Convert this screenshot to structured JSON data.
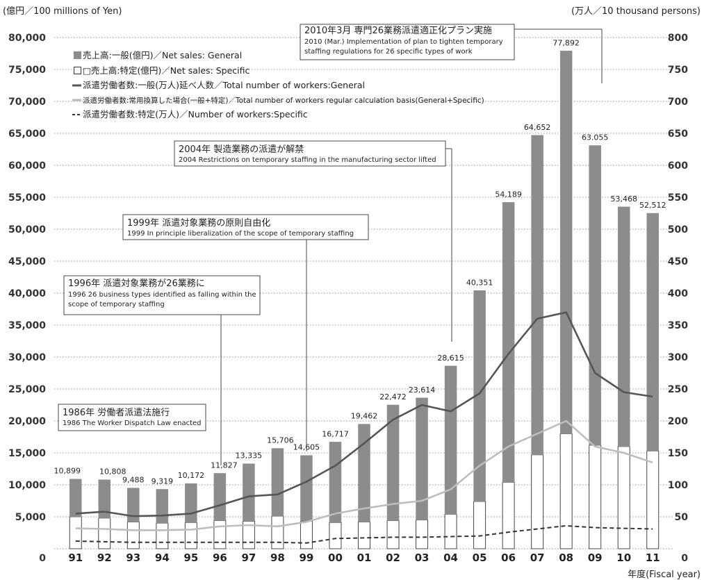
{
  "chart_data": {
    "type": "bar",
    "title": "",
    "y_left_label": "(億円／100 millions of Yen)",
    "y_right_label": "(万人／10 thousand persons)",
    "xlabel": "年度(Fiscal year)",
    "categories": [
      "91",
      "92",
      "93",
      "94",
      "95",
      "96",
      "97",
      "98",
      "99",
      "00",
      "01",
      "02",
      "03",
      "04",
      "05",
      "06",
      "07",
      "08",
      "09",
      "10",
      "11"
    ],
    "ylim_left": [
      0,
      80000
    ],
    "ylim_right": [
      0,
      800
    ],
    "y_left_ticks": [
      "0",
      "5,000",
      "10,000",
      "15,000",
      "20,000",
      "25,000",
      "30,000",
      "35,000",
      "40,000",
      "45,000",
      "50,000",
      "55,000",
      "60,000",
      "65,000",
      "70,000",
      "75,000",
      "80,000"
    ],
    "y_right_ticks": [
      "0",
      "50",
      "100",
      "150",
      "200",
      "250",
      "300",
      "350",
      "400",
      "450",
      "500",
      "550",
      "600",
      "650",
      "700",
      "750",
      "800"
    ],
    "grid": true,
    "bar_total_labels": [
      "10,899",
      "10,808",
      "9,488",
      "9,319",
      "10,172",
      "11,827",
      "13,335",
      "15,706",
      "14,605",
      "16,717",
      "19,462",
      "22,472",
      "23,614",
      "28,615",
      "40,351",
      "54,189",
      "64,652",
      "77,892",
      "63.055",
      "53,468",
      "52,512"
    ],
    "series": [
      {
        "name": "売上高:一般(億円)／Net sales: General",
        "kind": "bar",
        "axis": "left",
        "color": "#8c8c8c",
        "values": [
          5900,
          6000,
          5300,
          5300,
          6100,
          7400,
          9000,
          10600,
          10300,
          12600,
          15300,
          18100,
          19100,
          23200,
          33000,
          43800,
          50000,
          59900,
          46900,
          37500,
          37200
        ]
      },
      {
        "name": "□売上高:特定(億円)／Net sales: Specific",
        "kind": "bar",
        "axis": "left",
        "color": "#ffffff",
        "values": [
          5000,
          4800,
          4200,
          4000,
          4100,
          4400,
          4300,
          5100,
          4300,
          4100,
          4200,
          4400,
          4500,
          5400,
          7400,
          10400,
          14700,
          18000,
          16200,
          16000,
          15300
        ]
      },
      {
        "name": "派遣労働者数:一般(万人)延べ人数／Total number of workers:General",
        "kind": "line",
        "axis": "right",
        "color": "#555555",
        "style": "solid",
        "values": [
          55,
          58,
          51,
          52,
          55,
          68,
          82,
          85,
          105,
          130,
          165,
          202,
          225,
          215,
          243,
          305,
          360,
          370,
          275,
          245,
          238
        ]
      },
      {
        "name": "派遣労働者数:常用換算した場合(一般+特定)／Total number of workers regular calculation basis(General+Specific)",
        "kind": "line",
        "axis": "right",
        "color": "#bdbdbd",
        "style": "solid",
        "values": [
          32,
          31,
          29,
          29,
          30,
          35,
          37,
          35,
          42,
          55,
          63,
          70,
          75,
          93,
          130,
          160,
          180,
          200,
          160,
          150,
          135
        ]
      },
      {
        "name": "派遣労働者数:特定(万人)／Number of workers:Specific",
        "kind": "line",
        "axis": "right",
        "color": "#333333",
        "style": "dashed",
        "values": [
          12,
          11,
          10,
          10,
          10,
          10,
          10,
          10,
          9,
          16,
          17,
          18,
          18,
          19,
          20,
          26,
          31,
          36,
          33,
          32,
          31
        ]
      }
    ],
    "annotations": [
      {
        "jp": "1986年  労働者派遣法施行",
        "en": "1986  The Worker Dispatch Law enacted"
      },
      {
        "jp": "1996年  派遣対象業務が26業務に",
        "en1": "1996  26 business types identified as falling within the",
        "en2": "scope of temporary staffing"
      },
      {
        "jp": "1999年  派遣対象業務の原則自由化",
        "en": "1999  In principle liberalization of the scope of temporary staffing"
      },
      {
        "jp": "2004年  製造業務の派遣が解禁",
        "en": "2004  Restrictions on temporary staffing in the manufacturing sector lifted"
      },
      {
        "jp": "2010年3月  専門26業務派遣適正化プラン実施",
        "en1": "2010 (Mar.) Implementation of plan to tighten temporary",
        "en2": "staffing regulations for 26 specific types of work"
      }
    ]
  }
}
